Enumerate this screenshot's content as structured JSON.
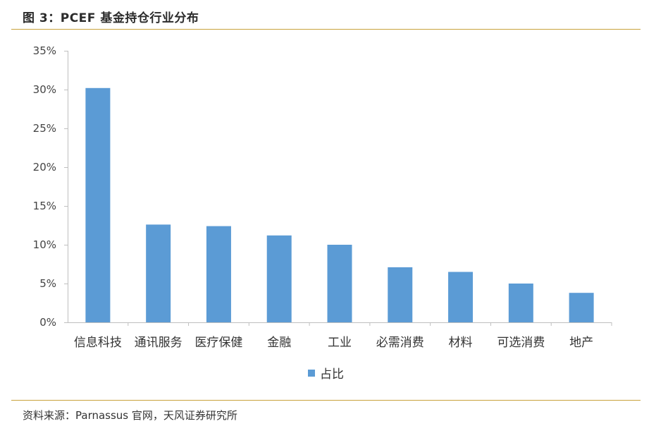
{
  "figure": {
    "title": "图 3：PCEF 基金持仓行业分布",
    "source": "资料来源：Parnassus 官网，天风证券研究所"
  },
  "colors": {
    "bar": "#5b9bd5",
    "rule": "#c8a23c",
    "axis": "#bfbfbf"
  },
  "chart_data": {
    "type": "bar",
    "title": "",
    "xlabel": "",
    "ylabel": "",
    "categories": [
      "信息科技",
      "通讯服务",
      "医疗保健",
      "金融",
      "工业",
      "必需消费",
      "材料",
      "可选消费",
      "地产"
    ],
    "series": [
      {
        "name": "占比",
        "values": [
          30.2,
          12.6,
          12.4,
          11.2,
          10.0,
          7.1,
          6.5,
          5.0,
          3.8
        ]
      }
    ],
    "ylim": [
      0,
      35
    ],
    "yticks": [
      "0%",
      "5%",
      "10%",
      "15%",
      "20%",
      "25%",
      "30%",
      "35%"
    ],
    "ytick_values": [
      0,
      5,
      10,
      15,
      20,
      25,
      30,
      35
    ],
    "grid": false,
    "legend": "bottom-center"
  }
}
